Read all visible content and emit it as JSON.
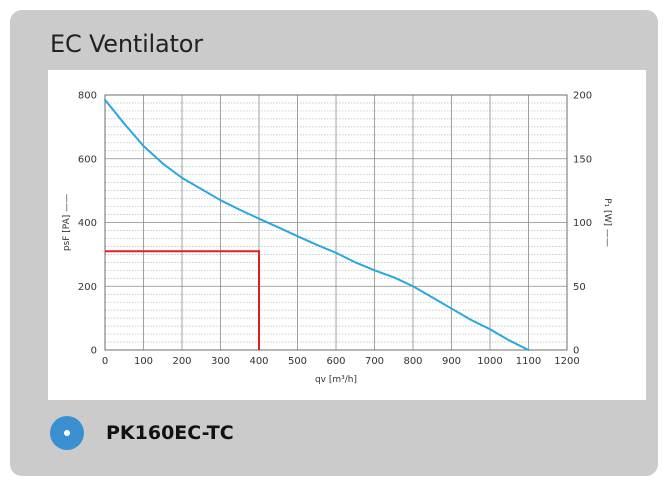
{
  "title": "EC Ventilator",
  "product": {
    "name": "PK160EC-TC",
    "bullet_icon": "circle-dot-icon",
    "bullet_color": "#3a8fd1"
  },
  "chart_data": {
    "type": "line",
    "xlabel": "qv [m³/h]",
    "ylabel_left": "psF [PA] ——",
    "ylabel_right": "P₁ [W] ——",
    "xlim": [
      0,
      1200
    ],
    "ylim_left": [
      0,
      800
    ],
    "ylim_right": [
      0,
      200
    ],
    "x_ticks": [
      "0",
      "100",
      "200",
      "300",
      "400",
      "500",
      "600",
      "700",
      "800",
      "900",
      "1000",
      "1100",
      "1200"
    ],
    "y_ticks_left": [
      "0",
      "200",
      "400",
      "600",
      "800"
    ],
    "y_ticks_right": [
      "0",
      "50",
      "100",
      "150",
      "200"
    ],
    "grid": true,
    "series": [
      {
        "color": "#29a8e0",
        "x": [
          0,
          50,
          100,
          150,
          200,
          250,
          300,
          350,
          400,
          450,
          500,
          550,
          600,
          650,
          700,
          750,
          800,
          850,
          900,
          950,
          1000,
          1050,
          1100
        ],
        "y": [
          785,
          710,
          640,
          585,
          540,
          505,
          470,
          440,
          412,
          385,
          357,
          330,
          305,
          275,
          250,
          228,
          200,
          165,
          130,
          95,
          65,
          30,
          0
        ]
      }
    ],
    "annotation": {
      "color": "#e02020",
      "x": 400,
      "y": 310
    }
  }
}
